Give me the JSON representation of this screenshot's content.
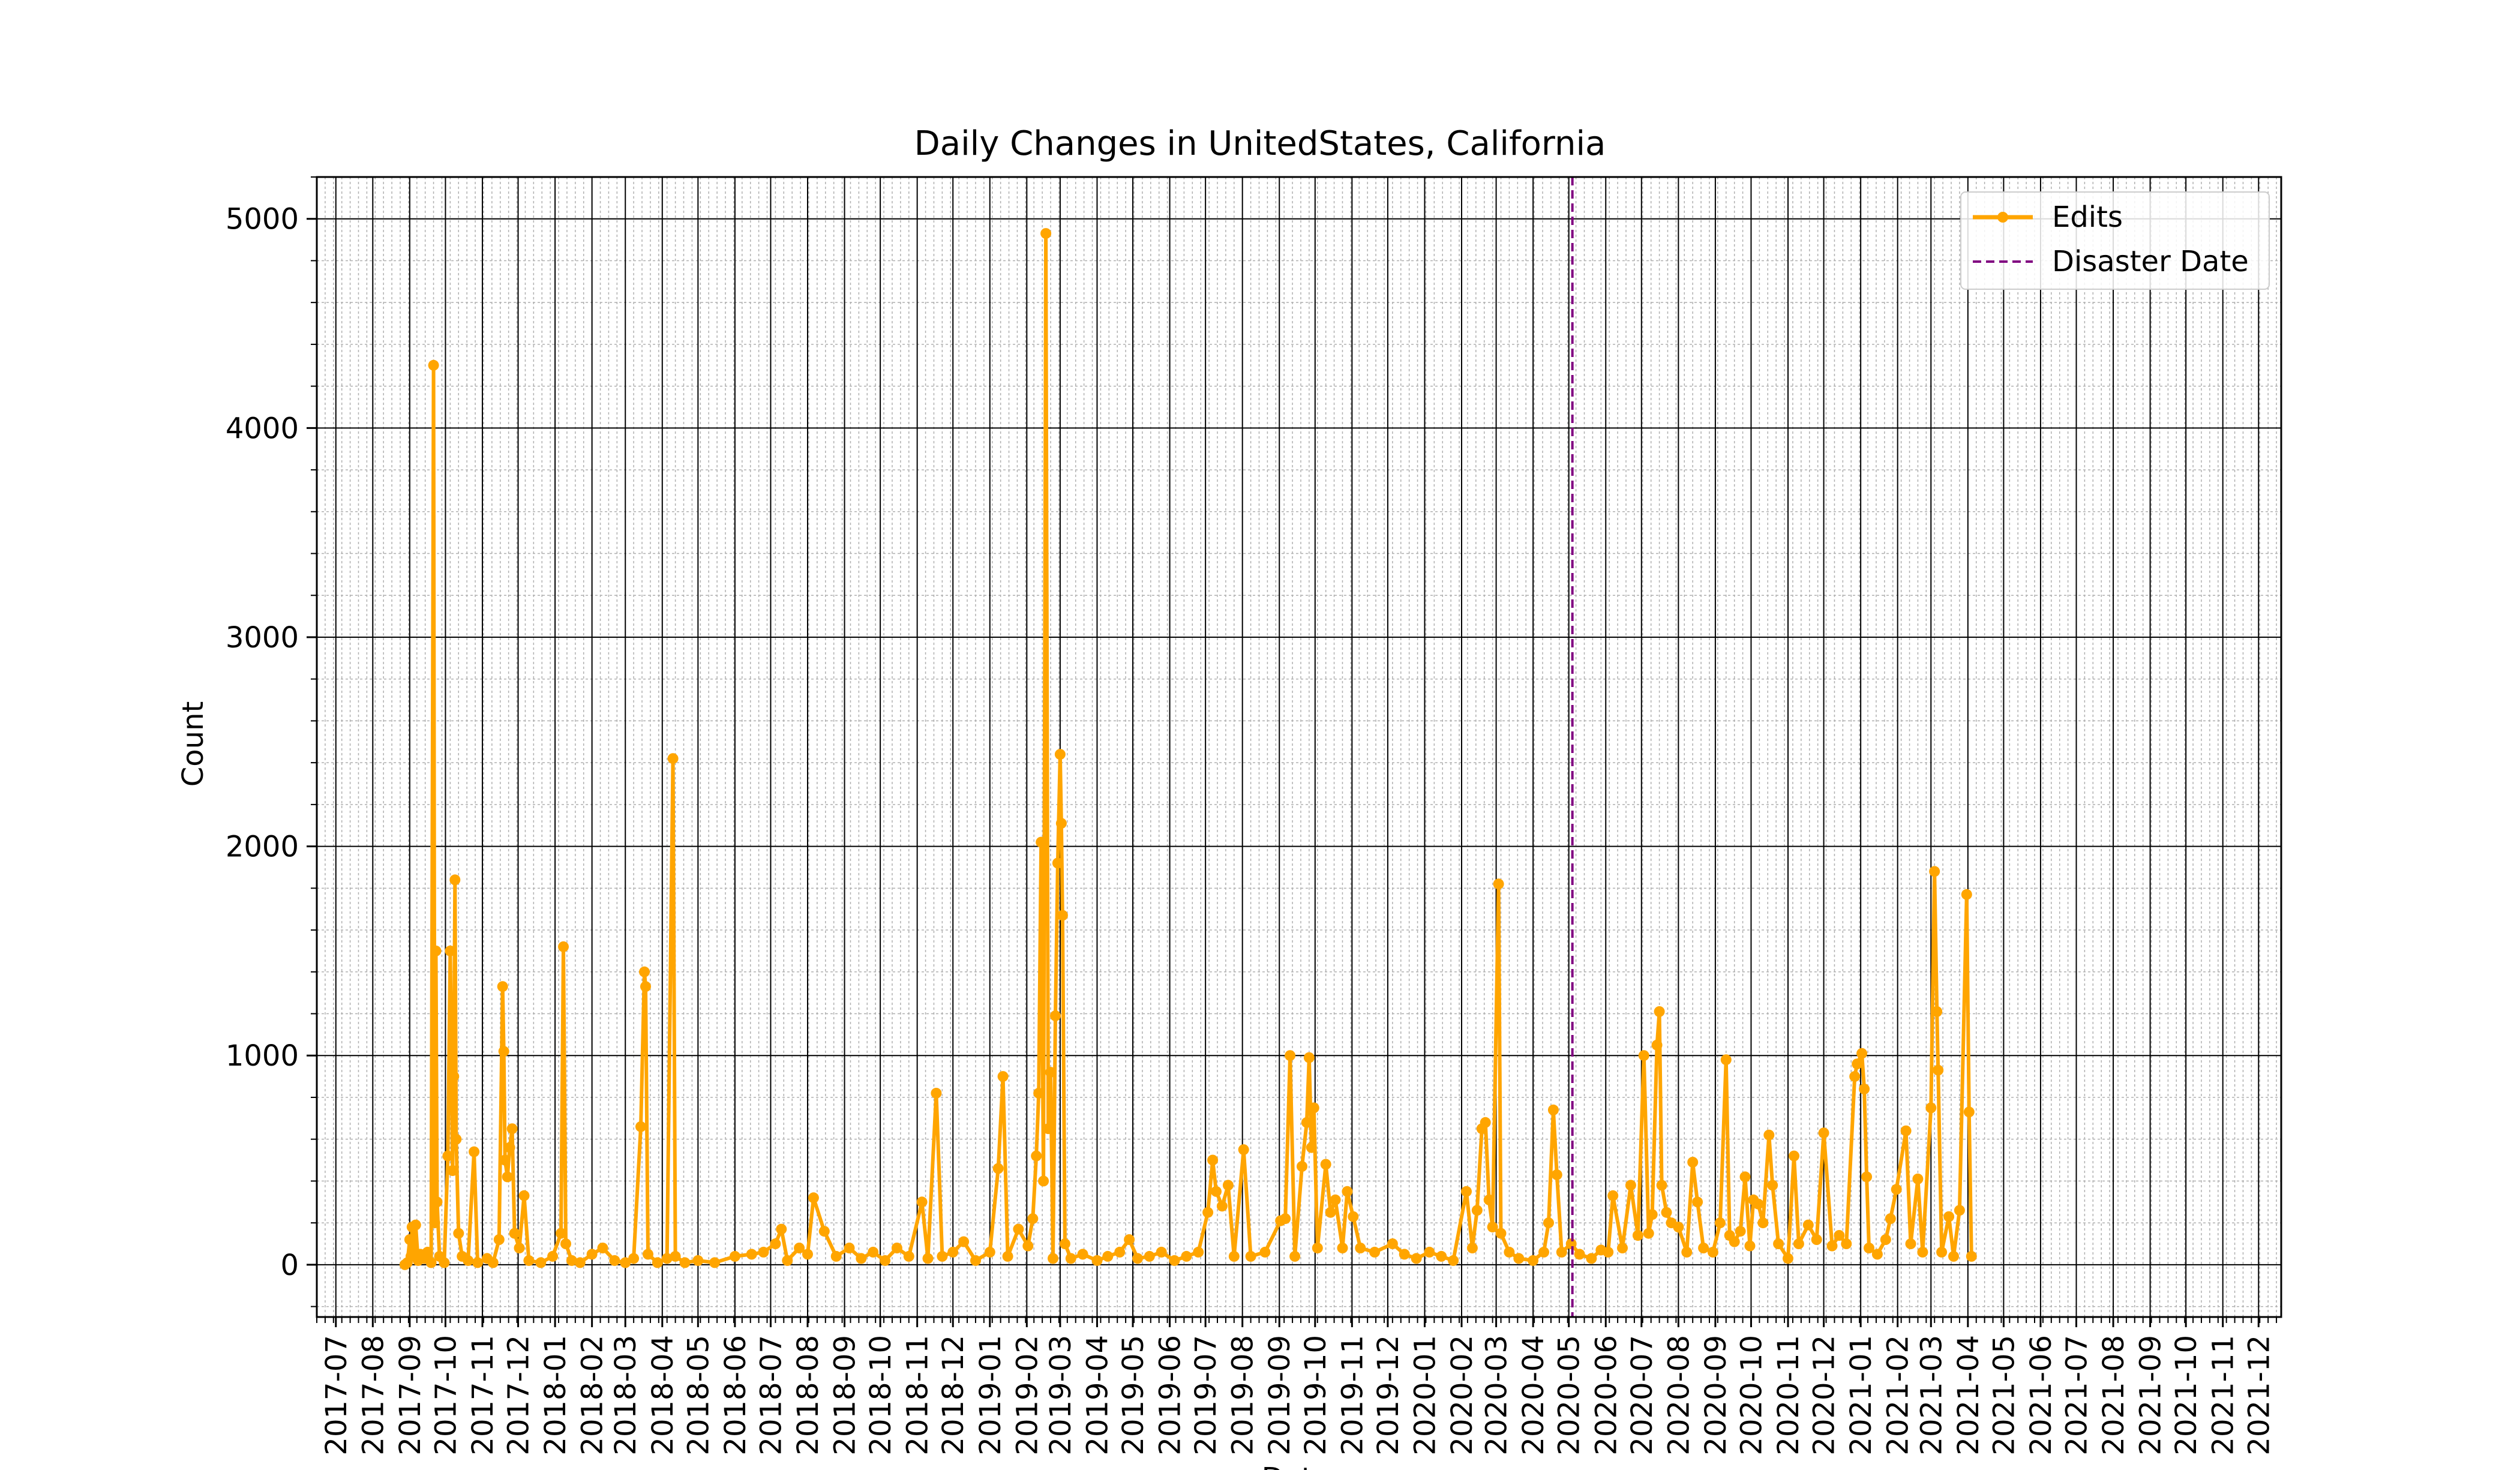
{
  "chart_data": {
    "type": "line",
    "title": "Daily Changes in UnitedStates, California",
    "xlabel": "Date",
    "ylabel": "Count",
    "x_range": [
      "2017-06-15",
      "2021-12-20"
    ],
    "ylim": [
      -250,
      5200
    ],
    "y_ticks": [
      0,
      1000,
      2000,
      3000,
      4000,
      5000
    ],
    "x_ticks": [
      "2017-07",
      "2017-08",
      "2017-09",
      "2017-10",
      "2017-11",
      "2017-12",
      "2018-01",
      "2018-02",
      "2018-03",
      "2018-04",
      "2018-05",
      "2018-06",
      "2018-07",
      "2018-08",
      "2018-09",
      "2018-10",
      "2018-11",
      "2018-12",
      "2019-01",
      "2019-02",
      "2019-03",
      "2019-04",
      "2019-05",
      "2019-06",
      "2019-07",
      "2019-08",
      "2019-09",
      "2019-10",
      "2019-11",
      "2019-12",
      "2020-01",
      "2020-02",
      "2020-03",
      "2020-04",
      "2020-05",
      "2020-06",
      "2020-07",
      "2020-08",
      "2020-09",
      "2020-10",
      "2020-11",
      "2020-12",
      "2021-01",
      "2021-02",
      "2021-03",
      "2021-04",
      "2021-05",
      "2021-06",
      "2021-07",
      "2021-08",
      "2021-09",
      "2021-10",
      "2021-11",
      "2021-12"
    ],
    "grid": true,
    "legend_position": "top-right",
    "series": [
      {
        "name": "Edits",
        "color": "#ffa500",
        "points": [
          [
            "2017-08-28",
            0
          ],
          [
            "2017-08-30",
            10
          ],
          [
            "2017-09-01",
            120
          ],
          [
            "2017-09-02",
            40
          ],
          [
            "2017-09-03",
            180
          ],
          [
            "2017-09-04",
            60
          ],
          [
            "2017-09-06",
            190
          ],
          [
            "2017-09-08",
            20
          ],
          [
            "2017-09-10",
            50
          ],
          [
            "2017-09-13",
            30
          ],
          [
            "2017-09-16",
            60
          ],
          [
            "2017-09-19",
            10
          ],
          [
            "2017-09-21",
            4300
          ],
          [
            "2017-09-22",
            200
          ],
          [
            "2017-09-23",
            1500
          ],
          [
            "2017-09-24",
            300
          ],
          [
            "2017-09-26",
            40
          ],
          [
            "2017-09-30",
            10
          ],
          [
            "2017-10-03",
            520
          ],
          [
            "2017-10-05",
            1500
          ],
          [
            "2017-10-07",
            450
          ],
          [
            "2017-10-08",
            900
          ],
          [
            "2017-10-09",
            1840
          ],
          [
            "2017-10-10",
            600
          ],
          [
            "2017-10-12",
            150
          ],
          [
            "2017-10-15",
            40
          ],
          [
            "2017-10-20",
            20
          ],
          [
            "2017-10-25",
            540
          ],
          [
            "2017-10-28",
            10
          ],
          [
            "2017-11-05",
            30
          ],
          [
            "2017-11-10",
            10
          ],
          [
            "2017-11-15",
            120
          ],
          [
            "2017-11-18",
            1330
          ],
          [
            "2017-11-19",
            1020
          ],
          [
            "2017-11-20",
            500
          ],
          [
            "2017-11-22",
            420
          ],
          [
            "2017-11-24",
            560
          ],
          [
            "2017-11-26",
            650
          ],
          [
            "2017-11-28",
            150
          ],
          [
            "2017-12-02",
            80
          ],
          [
            "2017-12-06",
            330
          ],
          [
            "2017-12-10",
            20
          ],
          [
            "2017-12-20",
            10
          ],
          [
            "2017-12-30",
            40
          ],
          [
            "2018-01-06",
            150
          ],
          [
            "2018-01-08",
            1520
          ],
          [
            "2018-01-10",
            100
          ],
          [
            "2018-01-15",
            20
          ],
          [
            "2018-01-22",
            10
          ],
          [
            "2018-02-01",
            50
          ],
          [
            "2018-02-10",
            80
          ],
          [
            "2018-02-20",
            20
          ],
          [
            "2018-03-01",
            10
          ],
          [
            "2018-03-08",
            30
          ],
          [
            "2018-03-14",
            660
          ],
          [
            "2018-03-17",
            1400
          ],
          [
            "2018-03-18",
            1330
          ],
          [
            "2018-03-20",
            50
          ],
          [
            "2018-03-28",
            10
          ],
          [
            "2018-04-05",
            30
          ],
          [
            "2018-04-10",
            2420
          ],
          [
            "2018-04-12",
            40
          ],
          [
            "2018-04-20",
            10
          ],
          [
            "2018-05-01",
            20
          ],
          [
            "2018-05-15",
            10
          ],
          [
            "2018-06-01",
            40
          ],
          [
            "2018-06-15",
            50
          ],
          [
            "2018-06-25",
            60
          ],
          [
            "2018-07-05",
            100
          ],
          [
            "2018-07-10",
            170
          ],
          [
            "2018-07-15",
            20
          ],
          [
            "2018-07-25",
            80
          ],
          [
            "2018-08-01",
            50
          ],
          [
            "2018-08-06",
            320
          ],
          [
            "2018-08-15",
            160
          ],
          [
            "2018-08-25",
            40
          ],
          [
            "2018-09-05",
            80
          ],
          [
            "2018-09-15",
            30
          ],
          [
            "2018-09-25",
            60
          ],
          [
            "2018-10-05",
            20
          ],
          [
            "2018-10-15",
            80
          ],
          [
            "2018-10-25",
            40
          ],
          [
            "2018-11-05",
            300
          ],
          [
            "2018-11-10",
            30
          ],
          [
            "2018-11-17",
            820
          ],
          [
            "2018-11-22",
            40
          ],
          [
            "2018-12-01",
            60
          ],
          [
            "2018-12-10",
            110
          ],
          [
            "2018-12-20",
            20
          ],
          [
            "2019-01-01",
            60
          ],
          [
            "2019-01-08",
            460
          ],
          [
            "2019-01-12",
            900
          ],
          [
            "2019-01-16",
            40
          ],
          [
            "2019-01-25",
            170
          ],
          [
            "2019-02-02",
            90
          ],
          [
            "2019-02-06",
            220
          ],
          [
            "2019-02-09",
            520
          ],
          [
            "2019-02-11",
            820
          ],
          [
            "2019-02-13",
            2020
          ],
          [
            "2019-02-15",
            400
          ],
          [
            "2019-02-17",
            4930
          ],
          [
            "2019-02-19",
            650
          ],
          [
            "2019-02-21",
            920
          ],
          [
            "2019-02-23",
            30
          ],
          [
            "2019-02-25",
            1190
          ],
          [
            "2019-02-27",
            1920
          ],
          [
            "2019-03-01",
            2440
          ],
          [
            "2019-03-02",
            2110
          ],
          [
            "2019-03-03",
            1670
          ],
          [
            "2019-03-05",
            100
          ],
          [
            "2019-03-10",
            30
          ],
          [
            "2019-03-20",
            50
          ],
          [
            "2019-04-01",
            20
          ],
          [
            "2019-04-10",
            40
          ],
          [
            "2019-04-20",
            60
          ],
          [
            "2019-04-28",
            120
          ],
          [
            "2019-05-05",
            30
          ],
          [
            "2019-05-15",
            40
          ],
          [
            "2019-05-25",
            60
          ],
          [
            "2019-06-05",
            20
          ],
          [
            "2019-06-15",
            40
          ],
          [
            "2019-06-25",
            60
          ],
          [
            "2019-07-03",
            250
          ],
          [
            "2019-07-07",
            500
          ],
          [
            "2019-07-10",
            350
          ],
          [
            "2019-07-15",
            280
          ],
          [
            "2019-07-20",
            380
          ],
          [
            "2019-07-25",
            40
          ],
          [
            "2019-08-02",
            550
          ],
          [
            "2019-08-08",
            40
          ],
          [
            "2019-08-20",
            60
          ],
          [
            "2019-09-02",
            210
          ],
          [
            "2019-09-06",
            220
          ],
          [
            "2019-09-10",
            1000
          ],
          [
            "2019-09-14",
            40
          ],
          [
            "2019-09-20",
            470
          ],
          [
            "2019-09-24",
            680
          ],
          [
            "2019-09-26",
            990
          ],
          [
            "2019-09-28",
            560
          ],
          [
            "2019-09-30",
            750
          ],
          [
            "2019-10-03",
            80
          ],
          [
            "2019-10-10",
            480
          ],
          [
            "2019-10-14",
            250
          ],
          [
            "2019-10-18",
            310
          ],
          [
            "2019-10-24",
            80
          ],
          [
            "2019-10-28",
            350
          ],
          [
            "2019-11-02",
            230
          ],
          [
            "2019-11-08",
            80
          ],
          [
            "2019-11-20",
            60
          ],
          [
            "2019-12-05",
            100
          ],
          [
            "2019-12-15",
            50
          ],
          [
            "2019-12-25",
            30
          ],
          [
            "2020-01-05",
            60
          ],
          [
            "2020-01-15",
            40
          ],
          [
            "2020-01-25",
            20
          ],
          [
            "2020-02-05",
            350
          ],
          [
            "2020-02-10",
            80
          ],
          [
            "2020-02-14",
            260
          ],
          [
            "2020-02-18",
            650
          ],
          [
            "2020-02-21",
            680
          ],
          [
            "2020-02-24",
            310
          ],
          [
            "2020-02-27",
            180
          ],
          [
            "2020-03-03",
            1820
          ],
          [
            "2020-03-05",
            150
          ],
          [
            "2020-03-12",
            60
          ],
          [
            "2020-03-20",
            30
          ],
          [
            "2020-04-01",
            20
          ],
          [
            "2020-04-10",
            60
          ],
          [
            "2020-04-14",
            200
          ],
          [
            "2020-04-18",
            740
          ],
          [
            "2020-04-21",
            430
          ],
          [
            "2020-04-25",
            60
          ],
          [
            "2020-05-03",
            100
          ],
          [
            "2020-05-10",
            50
          ],
          [
            "2020-05-20",
            30
          ],
          [
            "2020-05-28",
            70
          ],
          [
            "2020-06-03",
            60
          ],
          [
            "2020-06-07",
            330
          ],
          [
            "2020-06-15",
            80
          ],
          [
            "2020-06-22",
            380
          ],
          [
            "2020-06-28",
            140
          ],
          [
            "2020-07-03",
            1000
          ],
          [
            "2020-07-07",
            150
          ],
          [
            "2020-07-10",
            240
          ],
          [
            "2020-07-14",
            1050
          ],
          [
            "2020-07-16",
            1210
          ],
          [
            "2020-07-18",
            380
          ],
          [
            "2020-07-22",
            250
          ],
          [
            "2020-07-26",
            200
          ],
          [
            "2020-08-01",
            180
          ],
          [
            "2020-08-08",
            60
          ],
          [
            "2020-08-13",
            490
          ],
          [
            "2020-08-17",
            300
          ],
          [
            "2020-08-22",
            80
          ],
          [
            "2020-08-30",
            60
          ],
          [
            "2020-09-05",
            200
          ],
          [
            "2020-09-10",
            980
          ],
          [
            "2020-09-13",
            140
          ],
          [
            "2020-09-17",
            110
          ],
          [
            "2020-09-22",
            160
          ],
          [
            "2020-09-26",
            420
          ],
          [
            "2020-09-30",
            90
          ],
          [
            "2020-10-03",
            310
          ],
          [
            "2020-10-07",
            290
          ],
          [
            "2020-10-11",
            200
          ],
          [
            "2020-10-16",
            620
          ],
          [
            "2020-10-19",
            380
          ],
          [
            "2020-10-24",
            100
          ],
          [
            "2020-11-01",
            30
          ],
          [
            "2020-11-06",
            520
          ],
          [
            "2020-11-10",
            100
          ],
          [
            "2020-11-18",
            190
          ],
          [
            "2020-11-25",
            120
          ],
          [
            "2020-12-01",
            630
          ],
          [
            "2020-12-08",
            90
          ],
          [
            "2020-12-14",
            140
          ],
          [
            "2020-12-20",
            100
          ],
          [
            "2020-12-27",
            900
          ],
          [
            "2020-12-29",
            960
          ],
          [
            "2021-01-02",
            1010
          ],
          [
            "2021-01-04",
            840
          ],
          [
            "2021-01-06",
            420
          ],
          [
            "2021-01-08",
            80
          ],
          [
            "2021-01-15",
            50
          ],
          [
            "2021-01-22",
            120
          ],
          [
            "2021-01-26",
            220
          ],
          [
            "2021-01-31",
            360
          ],
          [
            "2021-02-08",
            640
          ],
          [
            "2021-02-12",
            100
          ],
          [
            "2021-02-18",
            410
          ],
          [
            "2021-02-22",
            60
          ],
          [
            "2021-03-01",
            750
          ],
          [
            "2021-03-04",
            1880
          ],
          [
            "2021-03-06",
            1210
          ],
          [
            "2021-03-07",
            930
          ],
          [
            "2021-03-10",
            60
          ],
          [
            "2021-03-16",
            230
          ],
          [
            "2021-03-20",
            40
          ],
          [
            "2021-03-25",
            260
          ],
          [
            "2021-03-31",
            1770
          ],
          [
            "2021-04-02",
            730
          ],
          [
            "2021-04-04",
            40
          ]
        ]
      }
    ],
    "reference_lines": [
      {
        "name": "Disaster Date",
        "x": "2020-05-04",
        "color": "#800080",
        "style": "dashed"
      }
    ]
  }
}
